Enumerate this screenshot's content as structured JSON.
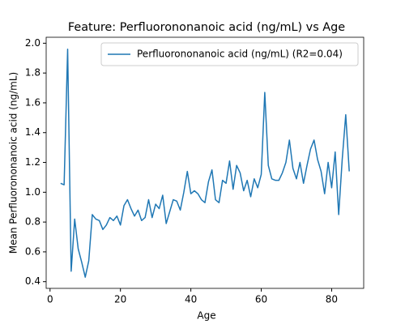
{
  "chart_data": {
    "type": "line",
    "title": "Feature: Perfluorononanoic acid (ng/mL) vs Age",
    "x_label": "Age",
    "y_label": "Mean Perfluorononanoic acid (ng/mL)",
    "x": [
      3,
      4,
      5,
      6,
      7,
      8,
      9,
      10,
      11,
      12,
      13,
      14,
      15,
      16,
      17,
      18,
      19,
      20,
      21,
      22,
      23,
      24,
      25,
      26,
      27,
      28,
      29,
      30,
      31,
      32,
      33,
      34,
      35,
      36,
      37,
      38,
      39,
      40,
      41,
      42,
      43,
      44,
      45,
      46,
      47,
      48,
      49,
      50,
      51,
      52,
      53,
      54,
      55,
      56,
      57,
      58,
      59,
      60,
      61,
      62,
      63,
      64,
      65,
      66,
      67,
      68,
      69,
      70,
      71,
      72,
      73,
      74,
      75,
      76,
      77,
      78,
      79,
      80,
      81,
      82,
      83,
      84,
      85
    ],
    "series": [
      {
        "name": "Perfluorononanoic acid (ng/mL) (R2=0.04)",
        "color": "#1f77b4",
        "values": [
          1.06,
          1.05,
          1.96,
          0.47,
          0.82,
          0.62,
          0.53,
          0.43,
          0.54,
          0.85,
          0.82,
          0.81,
          0.75,
          0.78,
          0.83,
          0.81,
          0.84,
          0.78,
          0.91,
          0.95,
          0.89,
          0.84,
          0.88,
          0.81,
          0.83,
          0.95,
          0.83,
          0.92,
          0.89,
          0.98,
          0.79,
          0.87,
          0.95,
          0.94,
          0.88,
          1.0,
          1.14,
          0.99,
          1.01,
          0.99,
          0.95,
          0.93,
          1.07,
          1.15,
          0.95,
          0.93,
          1.08,
          1.06,
          1.21,
          1.02,
          1.18,
          1.13,
          1.01,
          1.08,
          0.97,
          1.09,
          1.03,
          1.12,
          1.67,
          1.18,
          1.09,
          1.08,
          1.08,
          1.13,
          1.2,
          1.35,
          1.16,
          1.09,
          1.2,
          1.06,
          1.18,
          1.29,
          1.35,
          1.22,
          1.14,
          0.99,
          1.2,
          1.03,
          1.27,
          0.85,
          1.22,
          1.52,
          1.14
        ]
      }
    ],
    "xlim": [
      -1.1,
      89.1
    ],
    "xticks": [
      0,
      20,
      40,
      60,
      80
    ],
    "ylim": [
      0.355,
      2.04
    ],
    "yticks": [
      0.4,
      0.6,
      0.8,
      {
        "value": 1,
        "label": "1.0"
      },
      1.2,
      1.4,
      1.6,
      1.8,
      {
        "value": 2,
        "label": "2.0"
      }
    ],
    "legend": "upper right"
  }
}
